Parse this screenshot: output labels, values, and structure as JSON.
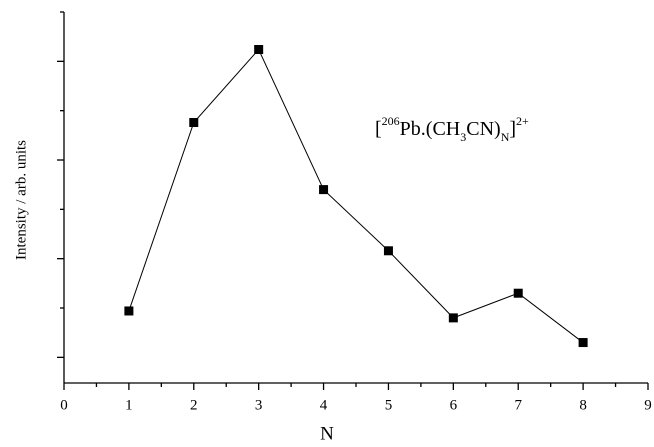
{
  "chart_data": {
    "type": "line",
    "x_label": "N",
    "y_label": "Intensity / arb. units",
    "annotation": [
      {
        "text": "["
      },
      {
        "text": "206",
        "script": "super"
      },
      {
        "text": "Pb.(CH"
      },
      {
        "text": "3",
        "script": "sub"
      },
      {
        "text": "CN)"
      },
      {
        "text": "N",
        "script": "sub"
      },
      {
        "text": "]"
      },
      {
        "text": "2+",
        "script": "super"
      }
    ],
    "x": [
      1,
      2,
      3,
      4,
      5,
      6,
      7,
      8
    ],
    "series": [
      {
        "color": "#000000",
        "marker": "square",
        "values": [
          1.47,
          3.38,
          4.12,
          2.7,
          2.08,
          1.4,
          1.65,
          1.15
        ]
      }
    ],
    "xlim": [
      0,
      9
    ],
    "xticks": [
      0,
      1,
      2,
      3,
      4,
      5,
      6,
      7,
      8,
      9
    ],
    "xminorticks": [
      0.5,
      1.5,
      2.5,
      3.5,
      4.5,
      5.5,
      6.5,
      7.5,
      8.5
    ],
    "ylim": [
      0.74,
      4.5
    ],
    "yticks": [
      1,
      2,
      3,
      4
    ],
    "yminorticks": [
      1.5,
      2.5,
      3.5,
      4.5
    ]
  }
}
